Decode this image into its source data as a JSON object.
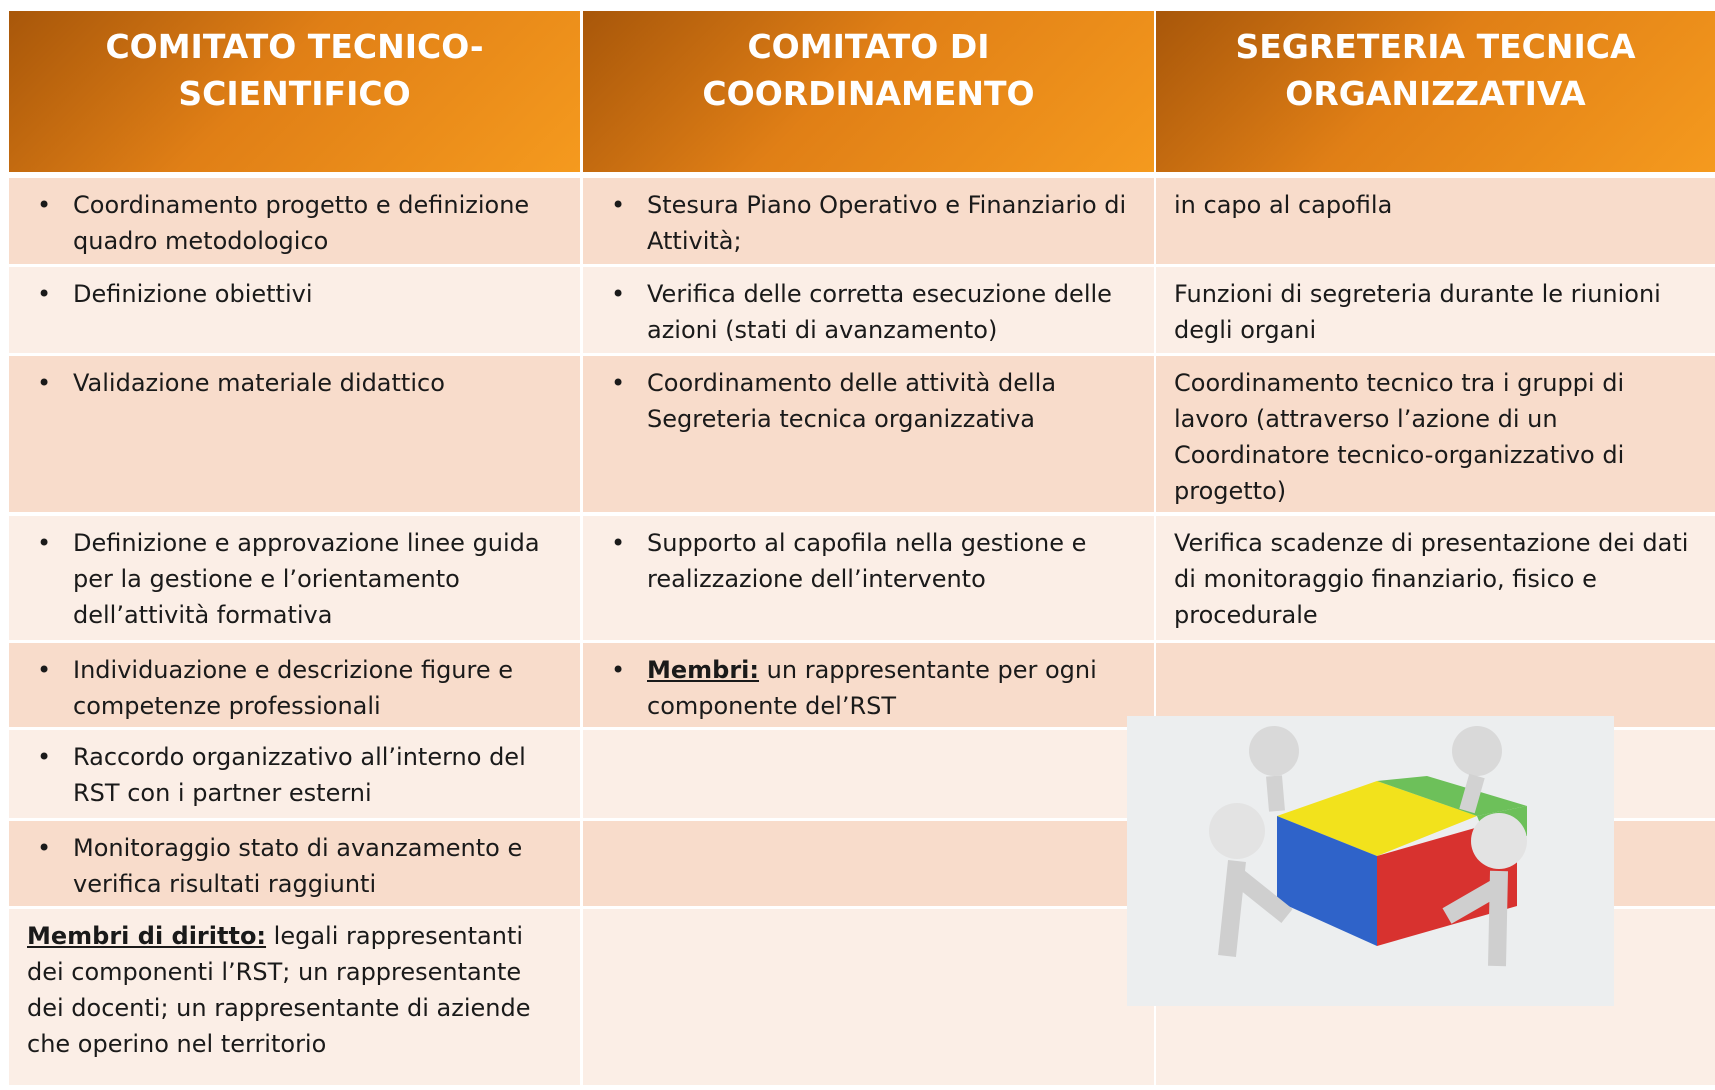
{
  "columns": [
    {
      "heading": "COMITATO TECNICO-SCIENTIFICO",
      "items": [
        "Coordinamento progetto e definizione quadro metodologico",
        "Definizione obiettivi",
        "Validazione materiale didattico",
        "Definizione e approvazione linee guida per la gestione e l’orientamento dell’attività formativa",
        "Individuazione e descrizione figure e competenze professionali",
        "Raccordo organizzativo all’interno del RST con i partner esterni",
        "Monitoraggio stato di avanzamento e verifica risultati raggiunti"
      ],
      "members": {
        "label": "Membri di diritto:",
        "text": "legali rappresentanti dei componenti l’RST; un rappresentante dei docenti; un rappresentante di aziende che operino nel territorio"
      }
    },
    {
      "heading": "COMITATO DI COORDINAMENTO",
      "items": [
        "Stesura Piano Operativo e Finanziario di  Attività;",
        "Verifica delle corretta esecuzione delle azioni (stati di avanzamento)",
        "Coordinamento delle attività della Segreteria tecnica organizzativa",
        "Supporto al capofila nella gestione e realizzazione dell’intervento"
      ],
      "members": {
        "label": "Membri:",
        "text": "un rappresentante per ogni componente del’RST"
      }
    },
    {
      "heading": "SEGRETERIA TECNICA ORGANIZZATIVA",
      "items": [
        "in capo al capofila",
        "Funzioni di segreteria durante le riunioni degli organi",
        "Coordinamento tecnico tra i gruppi di lavoro (attraverso l’azione di un Coordinatore tecnico-organizzativo di progetto)",
        "Verifica scadenze di presentazione dei dati di monitoraggio finanziario, fisico e procedurale"
      ]
    }
  ]
}
